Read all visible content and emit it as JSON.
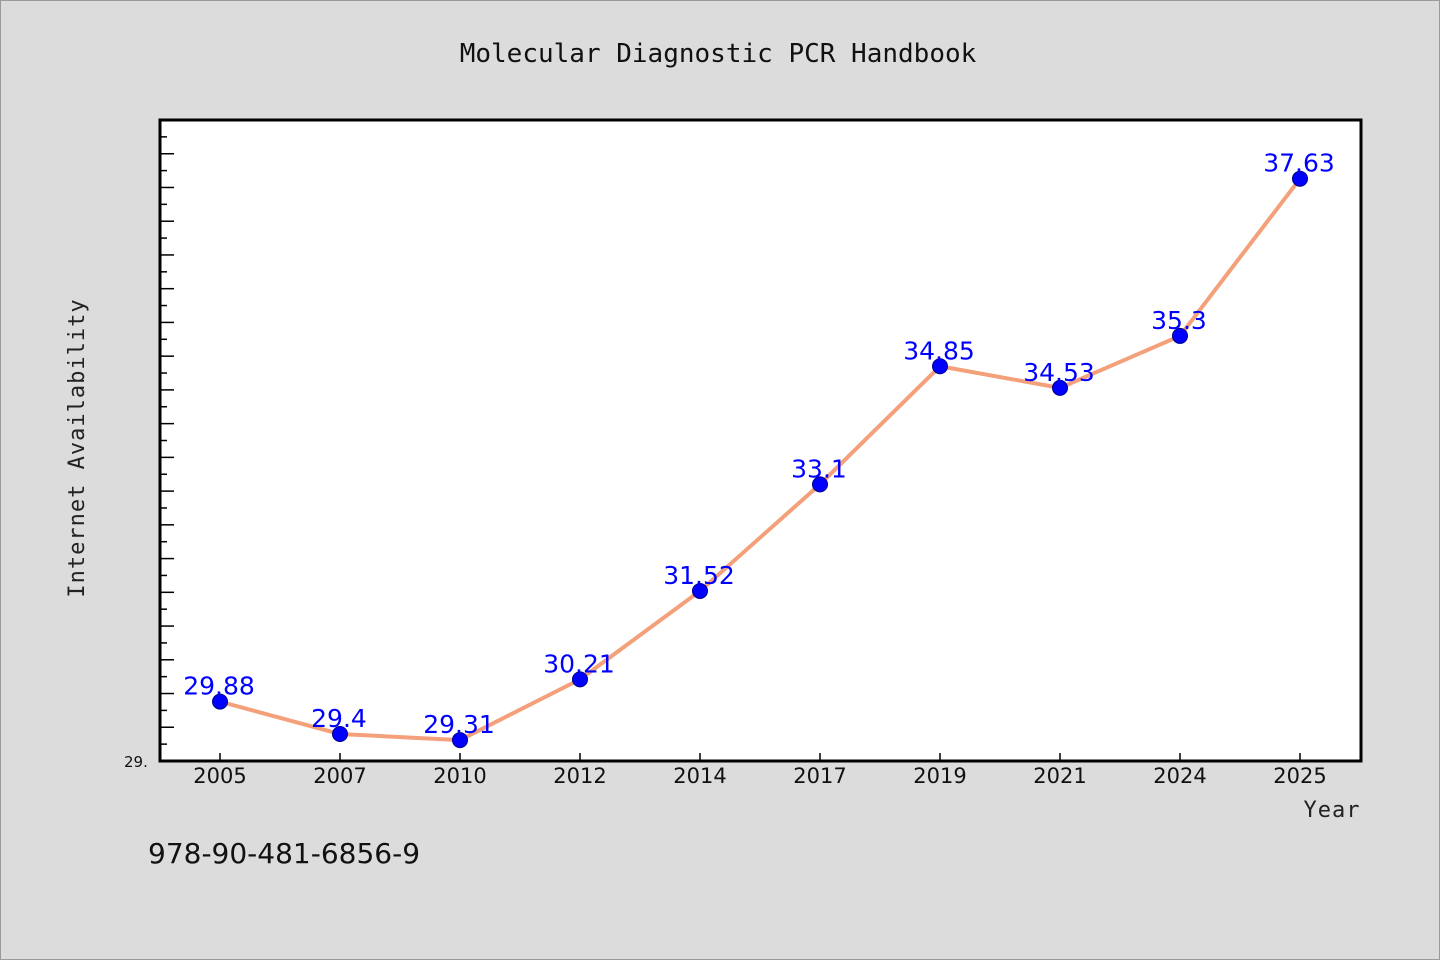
{
  "chart_data": {
    "type": "line",
    "title": "Molecular Diagnostic PCR Handbook",
    "xlabel": "Year",
    "ylabel": "Internet Availability",
    "categories": [
      "2005",
      "2007",
      "2010",
      "2012",
      "2014",
      "2017",
      "2019",
      "2021",
      "2024",
      "2025"
    ],
    "series": [
      {
        "values": [
          29.88,
          29.4,
          29.31,
          30.21,
          31.52,
          33.1,
          34.85,
          34.53,
          35.3,
          37.63
        ],
        "data_labels": [
          "29.88",
          "29.4",
          "29.31",
          "30.21",
          "31.52",
          "33.1",
          "34.85",
          "34.53",
          "35.3",
          "37.63"
        ]
      }
    ],
    "y_tick_label": "29.",
    "ylim": [
      29.0,
      38.5
    ],
    "grid": false,
    "line_color": "#f4a07a",
    "marker_color": "#0000ff",
    "label_color": "#0000ff"
  },
  "footer": {
    "isbn": "978-90-481-6856-9"
  }
}
